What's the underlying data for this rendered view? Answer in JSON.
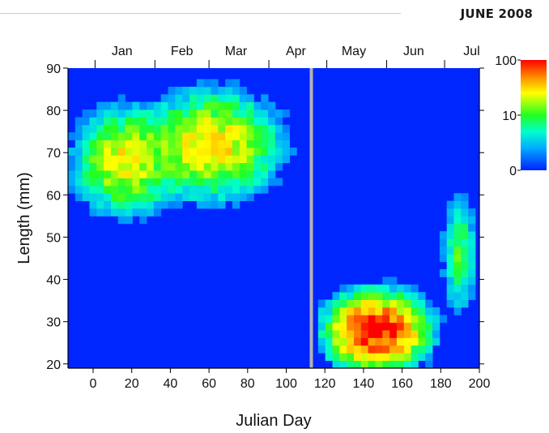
{
  "header": {
    "issue": "JUNE 2008"
  },
  "colors": {
    "gap_line": "#b3b3b3",
    "background_low": "#0033ff"
  },
  "chart_data": {
    "type": "heatmap",
    "title": "",
    "xlabel": "Julian Day",
    "ylabel": "Length (mm)",
    "xlim": [
      -13,
      200
    ],
    "ylim": [
      19,
      90
    ],
    "x_ticks": [
      0,
      20,
      40,
      60,
      80,
      100,
      120,
      140,
      160,
      180,
      200
    ],
    "y_ticks": [
      20,
      30,
      40,
      50,
      60,
      70,
      80,
      90
    ],
    "months": [
      {
        "label": "Jan",
        "x": 15
      },
      {
        "label": "Feb",
        "x": 46
      },
      {
        "label": "Mar",
        "x": 74
      },
      {
        "label": "Apr",
        "x": 105
      },
      {
        "label": "May",
        "x": 135
      },
      {
        "label": "Jun",
        "x": 166
      },
      {
        "label": "Jul",
        "x": 196
      }
    ],
    "month_boundaries": [
      1,
      32,
      60,
      91,
      121,
      152,
      182
    ],
    "sampling_gap_day": 113,
    "colorbar": {
      "scale": "log",
      "min": 0,
      "max": 100,
      "ticks": [
        "0",
        "10",
        "100"
      ]
    },
    "density_peaks": [
      {
        "day": 15,
        "length_mm": 67,
        "count": 25
      },
      {
        "day": 60,
        "length_mm": 71,
        "count": 30
      },
      {
        "day": 145,
        "length_mm": 27,
        "count": 100
      },
      {
        "day": 188,
        "length_mm": 45,
        "count": 10
      }
    ]
  }
}
